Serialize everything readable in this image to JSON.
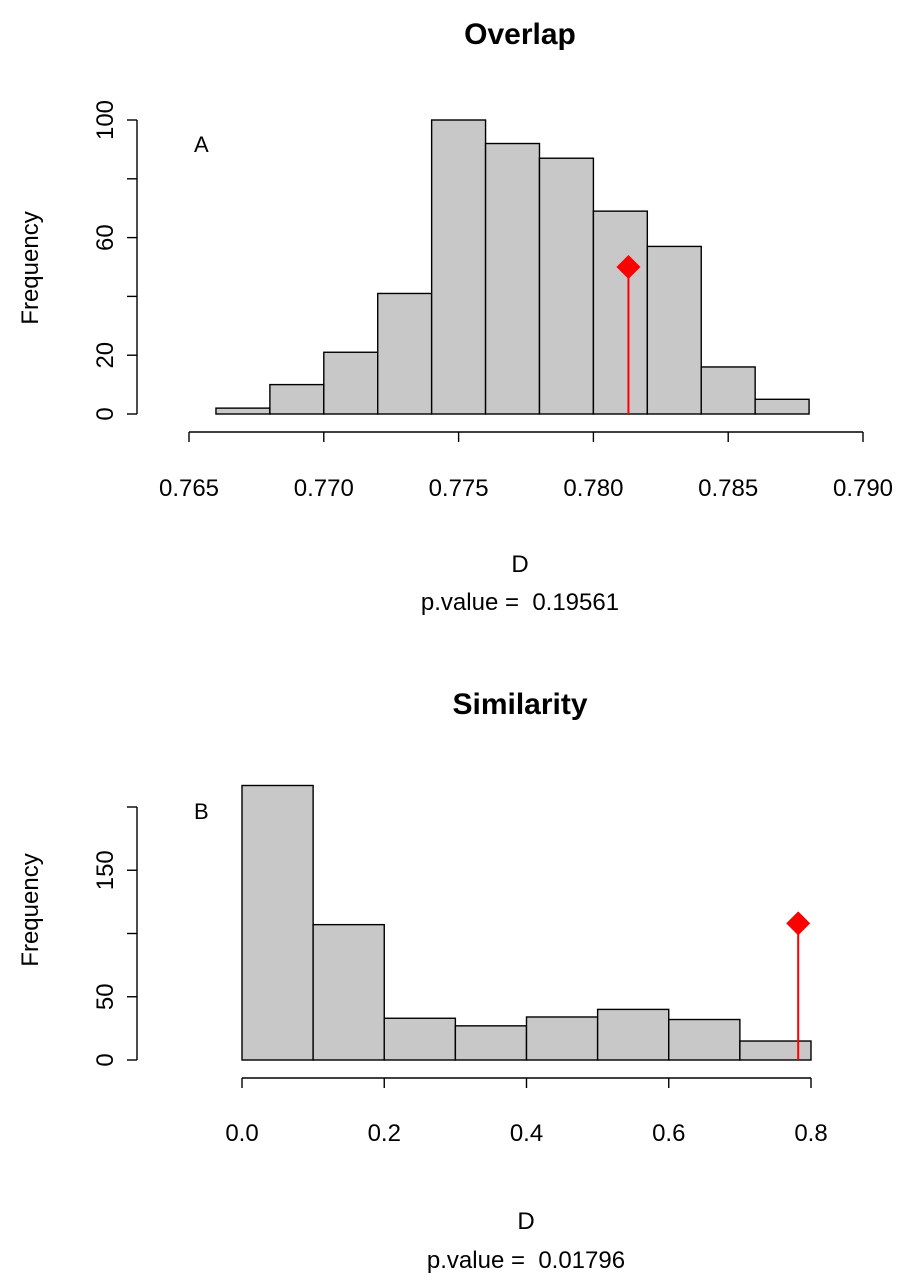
{
  "chart_data": [
    {
      "type": "bar",
      "title": "Overlap",
      "panel_label": "A",
      "xlabel": "D",
      "ylabel": "Frequency",
      "subtitle": "p.value =  0.19561",
      "xlim": [
        0.765,
        0.79
      ],
      "ylim": [
        0,
        100
      ],
      "xticks": [
        0.765,
        0.77,
        0.775,
        0.78,
        0.785,
        0.79
      ],
      "xtick_labels": [
        "0.765",
        "0.770",
        "0.775",
        "0.780",
        "0.785",
        "0.790"
      ],
      "yticks": [
        0,
        20,
        40,
        60,
        80,
        100
      ],
      "ytick_labels": [
        "0",
        "20",
        "",
        "60",
        "",
        "100"
      ],
      "bins": [
        {
          "x0": 0.766,
          "x1": 0.768,
          "count": 2
        },
        {
          "x0": 0.768,
          "x1": 0.77,
          "count": 10
        },
        {
          "x0": 0.77,
          "x1": 0.772,
          "count": 21
        },
        {
          "x0": 0.772,
          "x1": 0.774,
          "count": 41
        },
        {
          "x0": 0.774,
          "x1": 0.776,
          "count": 100
        },
        {
          "x0": 0.776,
          "x1": 0.778,
          "count": 92
        },
        {
          "x0": 0.778,
          "x1": 0.78,
          "count": 87
        },
        {
          "x0": 0.78,
          "x1": 0.782,
          "count": 69
        },
        {
          "x0": 0.782,
          "x1": 0.784,
          "count": 57
        },
        {
          "x0": 0.784,
          "x1": 0.786,
          "count": 16
        },
        {
          "x0": 0.786,
          "x1": 0.788,
          "count": 5
        }
      ],
      "observed": {
        "x": 0.7813,
        "y": 50
      },
      "bar_fill": "#c8c8c8",
      "marker_color": "#ff0000",
      "grid": false
    },
    {
      "type": "bar",
      "title": "Similarity",
      "panel_label": "B",
      "xlabel": "D",
      "ylabel": "Frequency",
      "subtitle": "p.value =  0.01796",
      "xlim": [
        0,
        0.8
      ],
      "ylim": [
        0,
        200
      ],
      "xticks": [
        0.0,
        0.2,
        0.4,
        0.6,
        0.8
      ],
      "xtick_labels": [
        "0.0",
        "0.2",
        "0.4",
        "0.6",
        "0.8"
      ],
      "yticks": [
        0,
        50,
        100,
        150,
        200
      ],
      "ytick_labels": [
        "0",
        "50",
        "",
        "150",
        ""
      ],
      "bins": [
        {
          "x0": 0.0,
          "x1": 0.1,
          "count": 217
        },
        {
          "x0": 0.1,
          "x1": 0.2,
          "count": 107
        },
        {
          "x0": 0.2,
          "x1": 0.3,
          "count": 33
        },
        {
          "x0": 0.3,
          "x1": 0.4,
          "count": 27
        },
        {
          "x0": 0.4,
          "x1": 0.5,
          "count": 34
        },
        {
          "x0": 0.5,
          "x1": 0.6,
          "count": 40
        },
        {
          "x0": 0.6,
          "x1": 0.7,
          "count": 32
        },
        {
          "x0": 0.7,
          "x1": 0.8,
          "count": 15
        }
      ],
      "observed": {
        "x": 0.782,
        "y": 108
      },
      "bar_fill": "#c8c8c8",
      "marker_color": "#ff0000",
      "grid": false
    }
  ]
}
